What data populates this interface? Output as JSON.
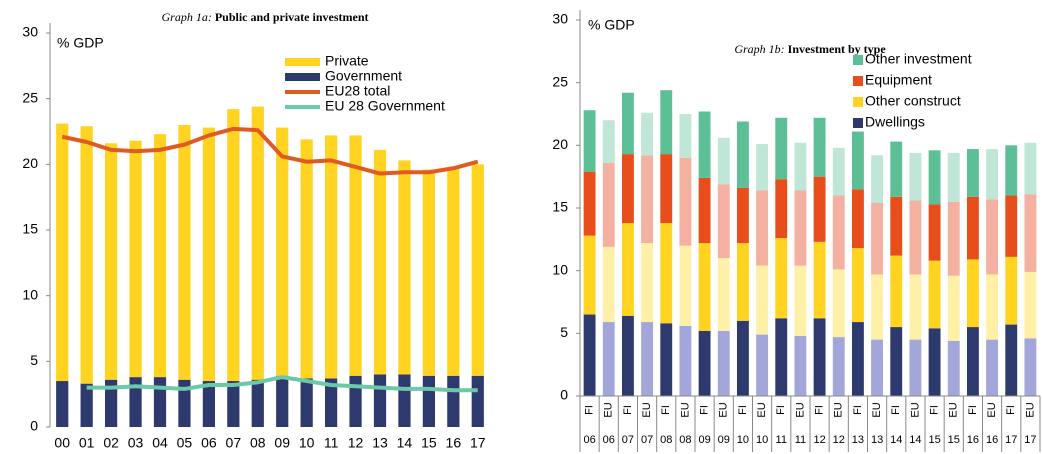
{
  "chart_data": [
    {
      "type": "bar",
      "stacked": true,
      "title_prefix": "Graph 1a:",
      "title": "Public and  private investment",
      "ylabel": "% GDP",
      "categories": [
        "00",
        "01",
        "02",
        "03",
        "04",
        "05",
        "06",
        "07",
        "08",
        "09",
        "10",
        "11",
        "12",
        "13",
        "14",
        "15",
        "16",
        "17"
      ],
      "ylim": [
        0,
        30
      ],
      "yticks": [
        0,
        5,
        10,
        15,
        20,
        25,
        30
      ],
      "series": [
        {
          "name": "Private",
          "kind": "bar",
          "color": "#ffd320",
          "values": [
            19.6,
            19.6,
            18.0,
            18.0,
            18.5,
            19.4,
            19.3,
            20.7,
            20.8,
            18.9,
            18.2,
            18.5,
            18.3,
            17.1,
            16.3,
            15.7,
            15.9,
            16.1
          ]
        },
        {
          "name": "Government",
          "kind": "bar",
          "color": "#2e3a6e",
          "values": [
            3.5,
            3.3,
            3.6,
            3.8,
            3.8,
            3.6,
            3.5,
            3.5,
            3.6,
            3.9,
            3.7,
            3.7,
            3.9,
            4.0,
            4.0,
            3.9,
            3.9,
            3.9
          ]
        },
        {
          "name": "EU28 total",
          "kind": "line",
          "color": "#e05a24",
          "values": [
            22.1,
            21.7,
            21.1,
            21.0,
            21.1,
            21.5,
            22.2,
            22.7,
            22.6,
            20.6,
            20.2,
            20.3,
            19.8,
            19.3,
            19.4,
            19.4,
            19.7,
            20.2
          ]
        },
        {
          "name": "EU 28 Government",
          "kind": "line",
          "color": "#6cc9a8",
          "values": [
            null,
            3.0,
            3.0,
            3.1,
            3.0,
            2.9,
            3.2,
            3.2,
            3.4,
            3.8,
            3.5,
            3.2,
            3.1,
            3.0,
            2.9,
            2.9,
            2.8,
            2.8
          ]
        }
      ]
    },
    {
      "type": "bar",
      "stacked": true,
      "title_prefix": "Graph 1b:",
      "title": "Investment by type",
      "ylabel": "% GDP",
      "categories": [
        "FI",
        "EU",
        "FI",
        "EU",
        "FI",
        "EU",
        "FI",
        "EU",
        "FI",
        "EU",
        "FI",
        "EU",
        "FI",
        "EU",
        "FI",
        "EU",
        "FI",
        "EU",
        "FI",
        "EU",
        "FI",
        "EU",
        "FI",
        "EU"
      ],
      "category_years": [
        "06",
        "06",
        "07",
        "07",
        "08",
        "08",
        "09",
        "09",
        "10",
        "10",
        "11",
        "11",
        "12",
        "12",
        "13",
        "13",
        "14",
        "14",
        "15",
        "15",
        "16",
        "16",
        "17",
        "17"
      ],
      "ylim": [
        0,
        30
      ],
      "yticks": [
        0,
        5,
        10,
        15,
        20,
        25,
        30
      ],
      "series": [
        {
          "name": "Other investment",
          "kind": "bar",
          "color": "#5cbf95",
          "pale_color": "#bfe6d6",
          "values": [
            4.9,
            3.4,
            4.9,
            3.4,
            5.1,
            3.5,
            5.3,
            3.7,
            5.3,
            3.7,
            4.9,
            3.8,
            4.7,
            3.8,
            4.6,
            3.8,
            4.4,
            3.8,
            4.3,
            3.9,
            3.8,
            4.0,
            4.0,
            4.1
          ]
        },
        {
          "name": "Equipment",
          "kind": "bar",
          "color": "#e84e1b",
          "pale_color": "#f4b0a0",
          "values": [
            5.1,
            6.7,
            5.5,
            7.0,
            5.5,
            7.0,
            5.2,
            5.9,
            4.4,
            6.0,
            4.7,
            6.0,
            5.2,
            5.9,
            4.7,
            5.7,
            4.7,
            5.9,
            4.5,
            5.9,
            5.0,
            6.0,
            4.9,
            6.2
          ]
        },
        {
          "name": "Other construct",
          "kind": "bar",
          "color": "#ffd320",
          "pale_color": "#fff0a8",
          "values": [
            6.3,
            6.0,
            7.4,
            6.3,
            8.0,
            6.4,
            7.0,
            5.8,
            6.2,
            5.5,
            6.4,
            5.6,
            6.1,
            5.4,
            5.9,
            5.2,
            5.7,
            5.2,
            5.4,
            5.2,
            5.4,
            5.2,
            5.4,
            5.3
          ]
        },
        {
          "name": "Dwellings",
          "kind": "bar",
          "color": "#2e3a6e",
          "pale_color": "#a2a6d8",
          "values": [
            6.5,
            5.9,
            6.4,
            5.9,
            5.8,
            5.6,
            5.2,
            5.2,
            6.0,
            4.9,
            6.2,
            4.8,
            6.2,
            4.7,
            5.9,
            4.5,
            5.5,
            4.5,
            5.4,
            4.4,
            5.5,
            4.5,
            5.7,
            4.6
          ]
        }
      ]
    }
  ]
}
